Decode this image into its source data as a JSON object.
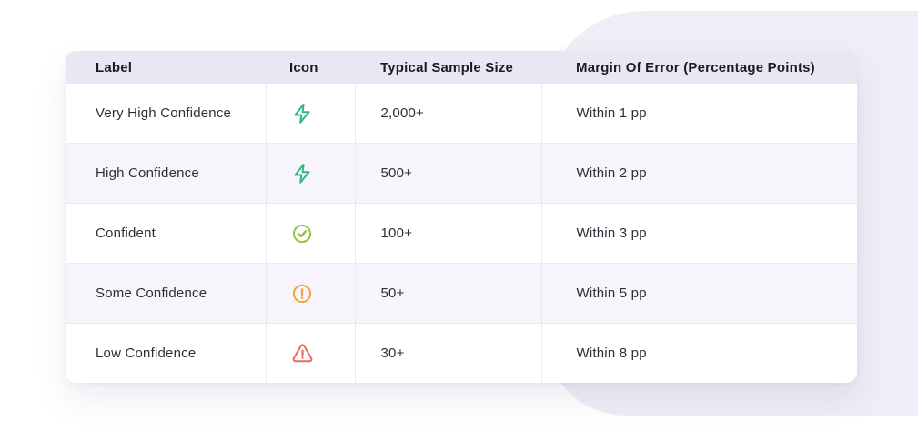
{
  "page": {
    "background_color": "#ffffff",
    "decorative_shape_color": "#efedf5"
  },
  "table": {
    "header_background": "#e9e7f2",
    "alt_row_background": "#f7f5fb",
    "columns": [
      {
        "key": "label",
        "label": "Label"
      },
      {
        "key": "icon",
        "label": "Icon"
      },
      {
        "key": "sample",
        "label": "Typical Sample Size"
      },
      {
        "key": "margin",
        "label": "Margin Of Error (Percentage Points)"
      }
    ],
    "rows": [
      {
        "label": "Very High Confidence",
        "icon": "lightning-bolt-icon",
        "icon_color": "#35b97e",
        "sample": "2,000+",
        "margin": "Within 1 pp"
      },
      {
        "label": "High Confidence",
        "icon": "lightning-bolt-icon",
        "icon_color": "#35b97e",
        "sample": "500+",
        "margin": "Within 2 pp"
      },
      {
        "label": "Confident",
        "icon": "seal-check-icon",
        "icon_color": "#93c63d",
        "sample": "100+",
        "margin": "Within 3 pp"
      },
      {
        "label": "Some Confidence",
        "icon": "exclamation-circle-icon",
        "icon_color": "#f0a63e",
        "sample": "50+",
        "margin": "Within 5 pp"
      },
      {
        "label": "Low Confidence",
        "icon": "warning-triangle-icon",
        "icon_color": "#ee6a5e",
        "sample": "30+",
        "margin": "Within 8 pp"
      }
    ]
  }
}
